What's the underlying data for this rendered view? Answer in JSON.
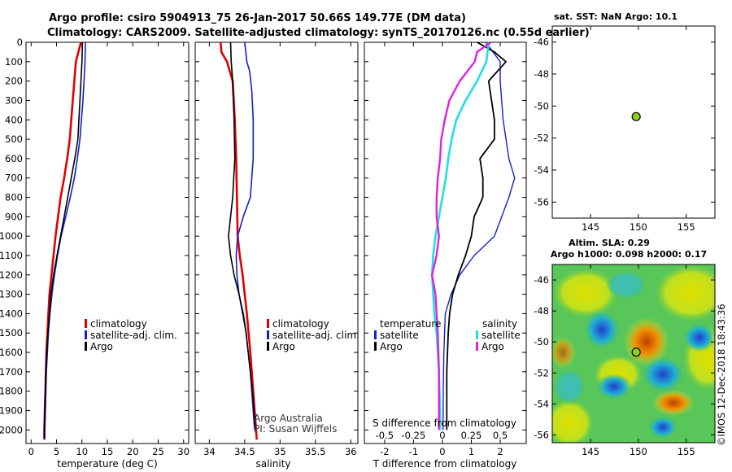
{
  "header": {
    "line1": "Argo profile: csiro 5904913_75 26-Jan-2017 50.66S 149.77E (DM data)",
    "line2": "Climatology: CARS2009. Satellite-adjusted climatology: synTS_20170126.nc (0.55d earlier)"
  },
  "colors": {
    "climatology": "#e00000",
    "satellite": "#1020d0",
    "argo": "#000000",
    "sat_salinity": "#20e0e0",
    "argo_salinity": "#e020e0",
    "float_marker": "#8ad020"
  },
  "panels": {
    "temperature": {
      "xlabel": "temperature (deg C)",
      "legend": [
        "climatology",
        "satellite-adj. clim.",
        "Argo"
      ]
    },
    "salinity": {
      "xlabel": "salinity",
      "legend": [
        "climatology",
        "satellite-adj. clim.",
        "Argo"
      ],
      "credit1": "Argo Australia",
      "credit2": "PI: Susan Wijffels"
    },
    "difference": {
      "xlabel": "T difference from climatology",
      "top_axis_label": "S difference from climatology",
      "legend_temp_title": "temperature",
      "legend_sal_title": "salinity",
      "legend_temp": [
        "satellite",
        "Argo"
      ],
      "legend_sal": [
        "satellite",
        "Argo"
      ]
    },
    "sst_map": {
      "title": "sat. SST: NaN Argo: 10.1"
    },
    "sla_map": {
      "title1": "Altim. SLA: 0.29",
      "title2": "Argo h1000: 0.098 h2000: 0.17",
      "stamp": "©IMOS 12-Dec-2018 18:43:36"
    }
  },
  "chart_data": [
    {
      "type": "line",
      "name": "temperature",
      "xlabel": "temperature (deg C)",
      "ylabel": "",
      "xlim": [
        -1,
        31
      ],
      "ylim": [
        2070,
        0
      ],
      "xticks": [
        0,
        5,
        10,
        15,
        20,
        25,
        30
      ],
      "yticks": [
        0,
        100,
        200,
        300,
        400,
        500,
        600,
        700,
        800,
        900,
        1000,
        1100,
        1200,
        1300,
        1400,
        1500,
        1600,
        1700,
        1800,
        1900,
        2000
      ],
      "series": [
        {
          "name": "climatology",
          "points": [
            [
              9.8,
              0
            ],
            [
              9.3,
              50
            ],
            [
              8.8,
              100
            ],
            [
              8.5,
              200
            ],
            [
              8.2,
              300
            ],
            [
              7.9,
              400
            ],
            [
              7.6,
              500
            ],
            [
              7.1,
              600
            ],
            [
              6.5,
              700
            ],
            [
              5.8,
              800
            ],
            [
              5.3,
              900
            ],
            [
              4.8,
              1000
            ],
            [
              4.4,
              1100
            ],
            [
              4.0,
              1200
            ],
            [
              3.6,
              1300
            ],
            [
              3.4,
              1400
            ],
            [
              3.2,
              1500
            ],
            [
              3.0,
              1600
            ],
            [
              2.9,
              1700
            ],
            [
              2.8,
              1800
            ],
            [
              2.7,
              1900
            ],
            [
              2.6,
              2000
            ],
            [
              2.6,
              2050
            ]
          ]
        },
        {
          "name": "satellite-adj. clim.",
          "points": [
            [
              10.7,
              0
            ],
            [
              10.6,
              100
            ],
            [
              10.4,
              200
            ],
            [
              10.2,
              300
            ],
            [
              9.9,
              400
            ],
            [
              9.6,
              500
            ],
            [
              9.1,
              600
            ],
            [
              8.5,
              700
            ],
            [
              7.7,
              800
            ],
            [
              6.8,
              900
            ],
            [
              5.9,
              1000
            ],
            [
              5.2,
              1100
            ],
            [
              4.6,
              1200
            ],
            [
              4.1,
              1300
            ],
            [
              3.7,
              1400
            ],
            [
              3.4,
              1500
            ],
            [
              3.2,
              1600
            ],
            [
              3.0,
              1700
            ],
            [
              2.9,
              1800
            ],
            [
              2.8,
              1900
            ],
            [
              2.7,
              2000
            ],
            [
              2.7,
              2050
            ]
          ]
        },
        {
          "name": "Argo",
          "points": [
            [
              10.1,
              0
            ],
            [
              10.0,
              100
            ],
            [
              9.8,
              200
            ],
            [
              9.6,
              300
            ],
            [
              9.4,
              400
            ],
            [
              9.2,
              500
            ],
            [
              8.6,
              600
            ],
            [
              7.9,
              700
            ],
            [
              7.2,
              800
            ],
            [
              6.5,
              900
            ],
            [
              5.8,
              1000
            ],
            [
              5.1,
              1100
            ],
            [
              4.4,
              1200
            ],
            [
              3.9,
              1300
            ],
            [
              3.6,
              1400
            ],
            [
              3.3,
              1500
            ],
            [
              3.1,
              1600
            ],
            [
              2.9,
              1700
            ],
            [
              2.8,
              1800
            ],
            [
              2.7,
              1900
            ],
            [
              2.6,
              2000
            ],
            [
              2.6,
              2040
            ]
          ]
        }
      ]
    },
    {
      "type": "line",
      "name": "salinity",
      "xlabel": "salinity",
      "ylabel": "",
      "xlim": [
        33.8,
        36.1
      ],
      "ylim": [
        2070,
        0
      ],
      "xticks": [
        34,
        34.5,
        35,
        35.5,
        36
      ],
      "series": [
        {
          "name": "climatology",
          "points": [
            [
              34.16,
              0
            ],
            [
              34.17,
              50
            ],
            [
              34.25,
              100
            ],
            [
              34.33,
              200
            ],
            [
              34.36,
              400
            ],
            [
              34.38,
              600
            ],
            [
              34.39,
              800
            ],
            [
              34.4,
              1000
            ],
            [
              34.43,
              1100
            ],
            [
              34.47,
              1200
            ],
            [
              34.53,
              1400
            ],
            [
              34.58,
              1600
            ],
            [
              34.62,
              1800
            ],
            [
              34.66,
              2000
            ],
            [
              34.67,
              2050
            ]
          ]
        },
        {
          "name": "satellite-adj. clim.",
          "points": [
            [
              34.5,
              0
            ],
            [
              34.53,
              100
            ],
            [
              34.57,
              150
            ],
            [
              34.6,
              250
            ],
            [
              34.62,
              400
            ],
            [
              34.62,
              600
            ],
            [
              34.58,
              800
            ],
            [
              34.48,
              900
            ],
            [
              34.4,
              1000
            ],
            [
              34.38,
              1100
            ],
            [
              34.39,
              1200
            ],
            [
              34.42,
              1300
            ],
            [
              34.47,
              1400
            ],
            [
              34.52,
              1500
            ],
            [
              34.58,
              1700
            ],
            [
              34.62,
              1900
            ],
            [
              34.64,
              2000
            ]
          ]
        },
        {
          "name": "Argo",
          "points": [
            [
              34.3,
              0
            ],
            [
              34.31,
              100
            ],
            [
              34.33,
              200
            ],
            [
              34.35,
              400
            ],
            [
              34.36,
              600
            ],
            [
              34.33,
              800
            ],
            [
              34.3,
              900
            ],
            [
              34.27,
              1000
            ],
            [
              34.3,
              1100
            ],
            [
              34.35,
              1200
            ],
            [
              34.42,
              1300
            ],
            [
              34.48,
              1400
            ],
            [
              34.52,
              1500
            ],
            [
              34.55,
              1600
            ],
            [
              34.58,
              1700
            ],
            [
              34.61,
              1800
            ],
            [
              34.63,
              1900
            ],
            [
              34.65,
              2000
            ]
          ]
        }
      ]
    },
    {
      "type": "line",
      "name": "difference",
      "xlabel": "T difference from climatology",
      "x2label": "S difference from climatology",
      "xlim": [
        -2.7,
        2.9
      ],
      "x2lim": [
        -0.675,
        0.725
      ],
      "ylim": [
        2070,
        0
      ],
      "xticks": [
        -2,
        -1,
        0,
        1,
        2
      ],
      "x2ticks": [
        -0.5,
        -0.25,
        0,
        0.25,
        0.5
      ],
      "series": [
        {
          "name": "temperature satellite",
          "axis": "T",
          "points": [
            [
              1.5,
              0
            ],
            [
              2.0,
              100
            ],
            [
              2.0,
              200
            ],
            [
              2.1,
              400
            ],
            [
              2.3,
              600
            ],
            [
              2.5,
              700
            ],
            [
              2.3,
              800
            ],
            [
              1.8,
              1000
            ],
            [
              1.1,
              1100
            ],
            [
              0.6,
              1200
            ],
            [
              0.3,
              1300
            ],
            [
              0.1,
              1400
            ],
            [
              0.05,
              1600
            ],
            [
              0.03,
              1800
            ],
            [
              0.02,
              2000
            ]
          ]
        },
        {
          "name": "temperature Argo",
          "axis": "T",
          "points": [
            [
              1.2,
              0
            ],
            [
              1.8,
              50
            ],
            [
              2.2,
              100
            ],
            [
              1.6,
              200
            ],
            [
              1.8,
              400
            ],
            [
              1.8,
              500
            ],
            [
              1.3,
              600
            ],
            [
              1.4,
              700
            ],
            [
              1.4,
              800
            ],
            [
              1.1,
              900
            ],
            [
              1.0,
              1000
            ],
            [
              0.8,
              1100
            ],
            [
              0.55,
              1200
            ],
            [
              0.35,
              1300
            ],
            [
              0.25,
              1400
            ],
            [
              0.2,
              1500
            ],
            [
              0.15,
              1700
            ],
            [
              0.15,
              1900
            ],
            [
              0.15,
              2000
            ]
          ]
        },
        {
          "name": "salinity satellite",
          "axis": "S",
          "points": [
            [
              0.4,
              0
            ],
            [
              0.38,
              100
            ],
            [
              0.3,
              200
            ],
            [
              0.2,
              300
            ],
            [
              0.12,
              400
            ],
            [
              0.08,
              500
            ],
            [
              0.05,
              600
            ],
            [
              0.03,
              700
            ],
            [
              0.0,
              800
            ],
            [
              -0.03,
              900
            ],
            [
              -0.06,
              1000
            ],
            [
              -0.08,
              1100
            ],
            [
              -0.09,
              1200
            ],
            [
              -0.08,
              1300
            ],
            [
              -0.07,
              1400
            ],
            [
              -0.05,
              1500
            ],
            [
              -0.03,
              1700
            ],
            [
              -0.02,
              1900
            ],
            [
              -0.02,
              2000
            ]
          ]
        },
        {
          "name": "salinity Argo",
          "axis": "S",
          "points": [
            [
              0.42,
              0
            ],
            [
              0.3,
              50
            ],
            [
              0.28,
              100
            ],
            [
              0.15,
              200
            ],
            [
              0.06,
              300
            ],
            [
              0.02,
              400
            ],
            [
              -0.01,
              500
            ],
            [
              -0.02,
              600
            ],
            [
              -0.04,
              700
            ],
            [
              -0.05,
              800
            ],
            [
              -0.05,
              900
            ],
            [
              -0.03,
              1000
            ],
            [
              -0.05,
              1100
            ],
            [
              -0.09,
              1200
            ],
            [
              -0.06,
              1300
            ],
            [
              -0.05,
              1400
            ],
            [
              -0.04,
              1500
            ],
            [
              -0.03,
              1700
            ],
            [
              -0.03,
              1900
            ],
            [
              -0.03,
              2000
            ]
          ]
        }
      ]
    },
    {
      "type": "scatter",
      "name": "sst_map",
      "title": "sat. SST: NaN Argo: 10.1",
      "xlim": [
        141,
        158
      ],
      "ylim": [
        -57,
        -45
      ],
      "xticks": [
        145,
        150,
        155
      ],
      "yticks": [
        -46,
        -48,
        -50,
        -52,
        -54,
        -56
      ],
      "points": [
        [
          149.77,
          -50.66
        ]
      ]
    },
    {
      "type": "heatmap",
      "name": "sla_map",
      "title": "Altim. SLA: 0.29 / Argo h1000: 0.098 h2000: 0.17",
      "xlim": [
        141,
        158
      ],
      "ylim": [
        -56.5,
        -45
      ],
      "xticks": [
        145,
        150,
        155
      ],
      "yticks": [
        -46,
        -48,
        -50,
        -52,
        -54,
        -56
      ],
      "points": [
        [
          149.77,
          -50.66
        ]
      ]
    }
  ]
}
